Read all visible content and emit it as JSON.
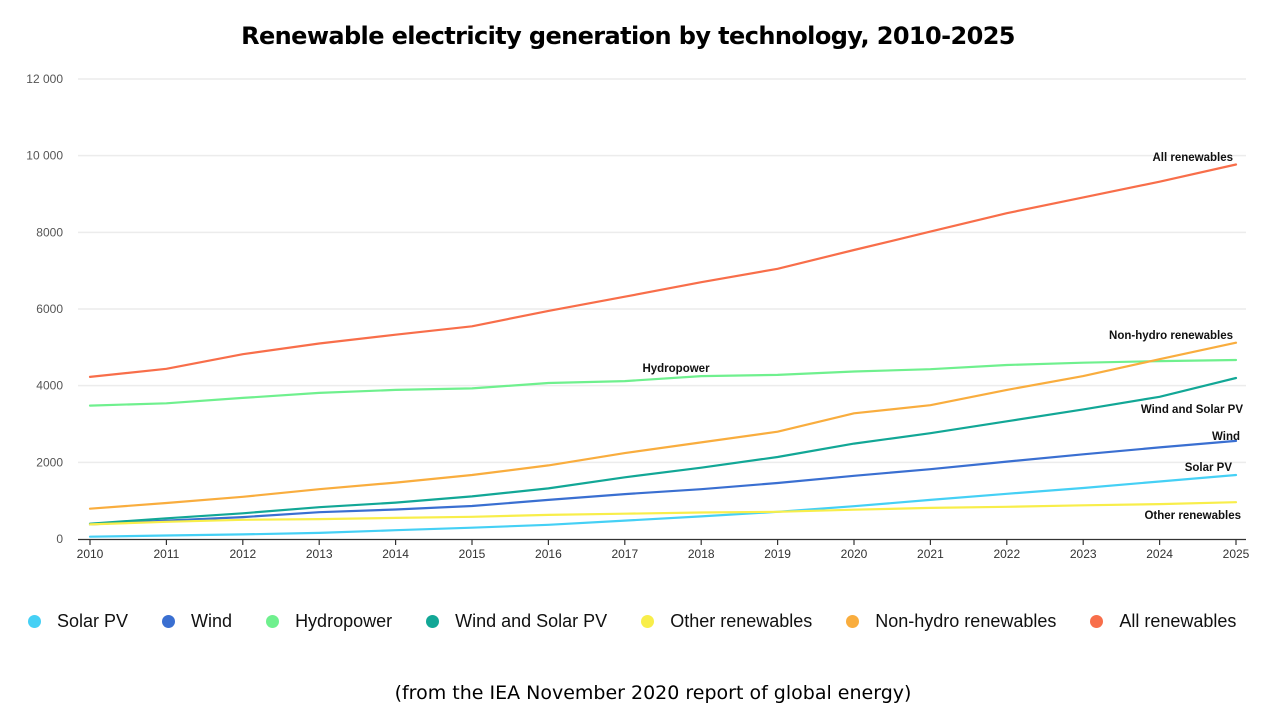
{
  "chart_data": {
    "type": "line",
    "title": "Renewable electricity generation by technology, 2010-2025",
    "xlabel": "",
    "ylabel": "",
    "x": [
      2010,
      2011,
      2012,
      2013,
      2014,
      2015,
      2016,
      2017,
      2018,
      2019,
      2020,
      2021,
      2022,
      2023,
      2024,
      2025
    ],
    "x_tick_labels": [
      "2010",
      "2011",
      "2012",
      "2013",
      "2014",
      "2015",
      "2016",
      "2017",
      "2018",
      "2019",
      "2020",
      "2021",
      "2022",
      "2023",
      "2024",
      "2025"
    ],
    "ylim": [
      0,
      12000
    ],
    "y_ticks": [
      0,
      2000,
      4000,
      6000,
      8000,
      10000,
      12000
    ],
    "y_tick_labels": [
      "0",
      "2000",
      "4000",
      "6000",
      "8000",
      "10 000",
      "12 000"
    ],
    "grid": true,
    "legend_position": "bottom",
    "series": [
      {
        "name": "Solar PV",
        "color": "#45d0f5",
        "label": "Solar PV",
        "values": [
          60,
          90,
          120,
          160,
          230,
          295,
          370,
          480,
          590,
          710,
          855,
          1020,
          1180,
          1330,
          1500,
          1670
        ]
      },
      {
        "name": "Wind",
        "color": "#3a6fd1",
        "label": "Wind",
        "values": [
          380,
          480,
          570,
          700,
          770,
          860,
          1020,
          1170,
          1300,
          1460,
          1650,
          1820,
          2020,
          2210,
          2390,
          2560
        ]
      },
      {
        "name": "Hydropower",
        "color": "#6ff08e",
        "label": "Hydropower",
        "values": [
          3480,
          3540,
          3680,
          3810,
          3890,
          3930,
          4070,
          4120,
          4250,
          4280,
          4370,
          4430,
          4540,
          4600,
          4640,
          4670
        ]
      },
      {
        "name": "Wind and Solar PV",
        "color": "#12a796",
        "label": "Wind and Solar PV",
        "values": [
          400,
          540,
          670,
          830,
          950,
          1110,
          1320,
          1610,
          1860,
          2140,
          2490,
          2760,
          3070,
          3380,
          3710,
          4200
        ]
      },
      {
        "name": "Other renewables",
        "color": "#f8ee4a",
        "label": "Other renewables",
        "values": [
          380,
          450,
          500,
          520,
          550,
          580,
          630,
          660,
          690,
          710,
          765,
          810,
          840,
          880,
          910,
          960
        ]
      },
      {
        "name": "Non-hydro renewables",
        "color": "#f9ad3e",
        "label": "Non-hydro renewables",
        "values": [
          790,
          940,
          1100,
          1300,
          1470,
          1670,
          1920,
          2240,
          2520,
          2800,
          3280,
          3490,
          3890,
          4250,
          4690,
          5120
        ]
      },
      {
        "name": "All renewables",
        "color": "#f86e4a",
        "label": "All renewables",
        "values": [
          4230,
          4440,
          4820,
          5100,
          5330,
          5550,
          5950,
          6320,
          6700,
          7050,
          7540,
          8020,
          8500,
          8910,
          9320,
          9770
        ]
      }
    ]
  },
  "footer": {
    "source_note": "(from the IEA November 2020 report of global energy)"
  }
}
